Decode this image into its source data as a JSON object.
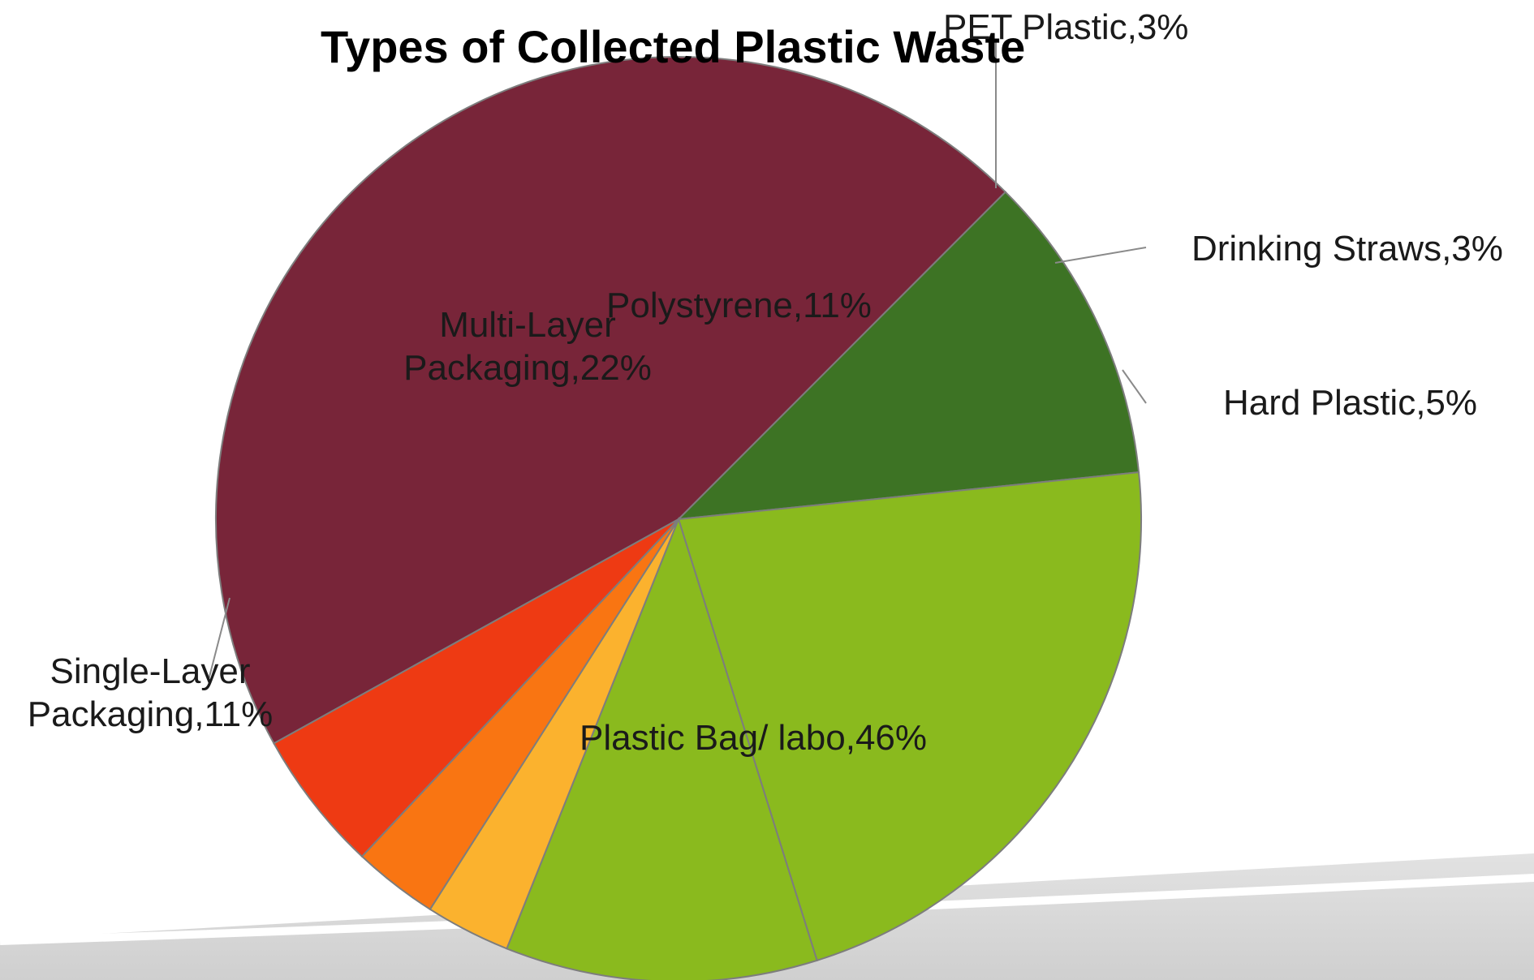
{
  "chart_data": {
    "type": "pie",
    "title": "Types of Collected Plastic Waste",
    "slices": [
      {
        "name": "Plastic Bag/ labo",
        "value": 46,
        "color": "#782539",
        "label_lines": [
          "Plastic Bag/ labo,46%"
        ]
      },
      {
        "name": "Single-Layer Packaging",
        "value": 11,
        "color": "#3d7324",
        "label_lines": [
          "Single-Layer",
          "Packaging,11%"
        ]
      },
      {
        "name": "Multi-Layer Packaging",
        "value": 22,
        "color": "#8aba1e",
        "label_lines": [
          "Multi-Layer",
          "Packaging,22%"
        ]
      },
      {
        "name": "Polystyrene",
        "value": 11,
        "color": "#8aba1e",
        "label_lines": [
          "Polystyrene,11%"
        ]
      },
      {
        "name": "PET Plastic",
        "value": 3,
        "color": "#fbb22e",
        "label_lines": [
          "PET Plastic,3%"
        ]
      },
      {
        "name": "Drinking Straws",
        "value": 3,
        "color": "#f97512",
        "label_lines": [
          "Drinking Straws,3%"
        ]
      },
      {
        "name": "Hard Plastic",
        "value": 5,
        "color": "#ee3a13",
        "label_lines": [
          "Hard Plastic,5%"
        ]
      }
    ],
    "legend": "none"
  }
}
